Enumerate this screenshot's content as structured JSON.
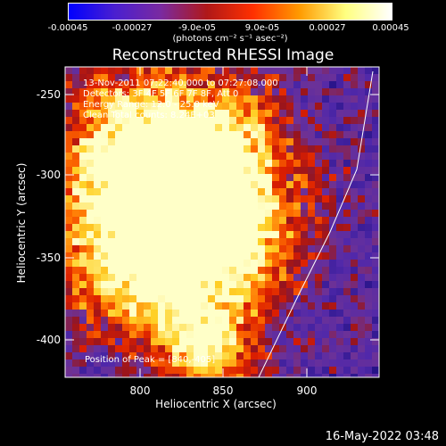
{
  "colorbar": {
    "ticks": [
      "-0.00045",
      "-0.00027",
      "-9.0e-05",
      "9.0e-05",
      "0.00027",
      "0.00045"
    ],
    "units": "(photons cm⁻² s⁻¹ asec⁻²)",
    "colors": [
      "#0000ff",
      "#4a1fd0",
      "#7a2aa0",
      "#b01818",
      "#ff3000",
      "#ff9a00",
      "#ffff80",
      "#ffffff"
    ]
  },
  "plot": {
    "title": "Reconstructed RHESSI Image",
    "xlabel": "Heliocentric X (arcsec)",
    "ylabel": "Heliocentric Y (arcsec)",
    "xticks": [
      "800",
      "850",
      "900"
    ],
    "yticks": [
      "-250",
      "-300",
      "-350",
      "-400"
    ],
    "info_lines": [
      "13-Nov-2011 07:22:40.000 to 07:27:08.000",
      "Detectors: 3F 4F 5F 6F 7F 8F, Att 0",
      "Energy Range: 12.0 - 25.0 keV",
      "Clean    Total counts: 8.24E+03"
    ],
    "peak_label": "Position of Peak = [840,-405]"
  },
  "footer": {
    "timestamp": "16-May-2022 03:48"
  }
}
